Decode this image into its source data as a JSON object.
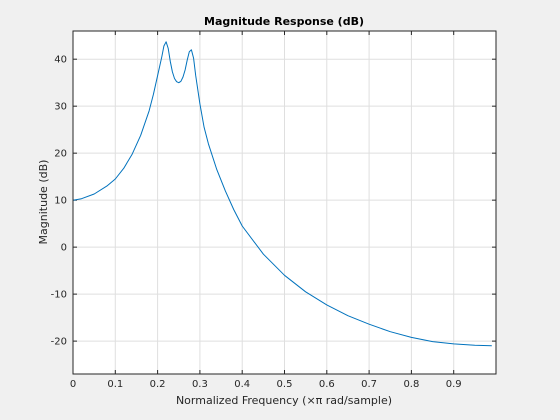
{
  "chart_data": {
    "type": "line",
    "title": "Magnitude Response (dB)",
    "xlabel": "Normalized Frequency (×π rad/sample)",
    "ylabel": "Magnitude (dB)",
    "xlim": [
      0,
      1
    ],
    "ylim": [
      -27,
      46
    ],
    "grid": true,
    "xticks": [
      0,
      0.1,
      0.2,
      0.3,
      0.4,
      0.5,
      0.6,
      0.7,
      0.8,
      0.9
    ],
    "xtick_labels": [
      "0",
      "0.1",
      "0.2",
      "0.3",
      "0.4",
      "0.5",
      "0.6",
      "0.7",
      "0.8",
      "0.9"
    ],
    "yticks": [
      -20,
      -10,
      0,
      10,
      20,
      30,
      40
    ],
    "ytick_labels": [
      "-20",
      "-10",
      "0",
      "10",
      "20",
      "30",
      "40"
    ],
    "series": [
      {
        "color": "#0072bd",
        "x": [
          0,
          0.02,
          0.05,
          0.08,
          0.1,
          0.12,
          0.14,
          0.16,
          0.18,
          0.19,
          0.2,
          0.21,
          0.215,
          0.22,
          0.225,
          0.23,
          0.235,
          0.24,
          0.245,
          0.25,
          0.255,
          0.26,
          0.265,
          0.27,
          0.275,
          0.28,
          0.285,
          0.29,
          0.3,
          0.31,
          0.32,
          0.34,
          0.36,
          0.38,
          0.4,
          0.45,
          0.5,
          0.55,
          0.6,
          0.65,
          0.7,
          0.75,
          0.8,
          0.85,
          0.9,
          0.95,
          0.99
        ],
        "y": [
          10,
          10.3,
          11.3,
          13,
          14.5,
          16.8,
          19.8,
          23.8,
          29,
          32.5,
          36.5,
          40.5,
          42.8,
          43.7,
          42.3,
          39.5,
          37.3,
          35.9,
          35.2,
          35,
          35.3,
          36.2,
          37.7,
          39.8,
          41.6,
          42,
          40.2,
          36.5,
          30.5,
          25.5,
          22,
          16.5,
          12,
          8,
          4.5,
          -1.5,
          -6,
          -9.5,
          -12.3,
          -14.6,
          -16.4,
          -18,
          -19.2,
          -20.1,
          -20.6,
          -20.9,
          -21
        ]
      }
    ]
  }
}
